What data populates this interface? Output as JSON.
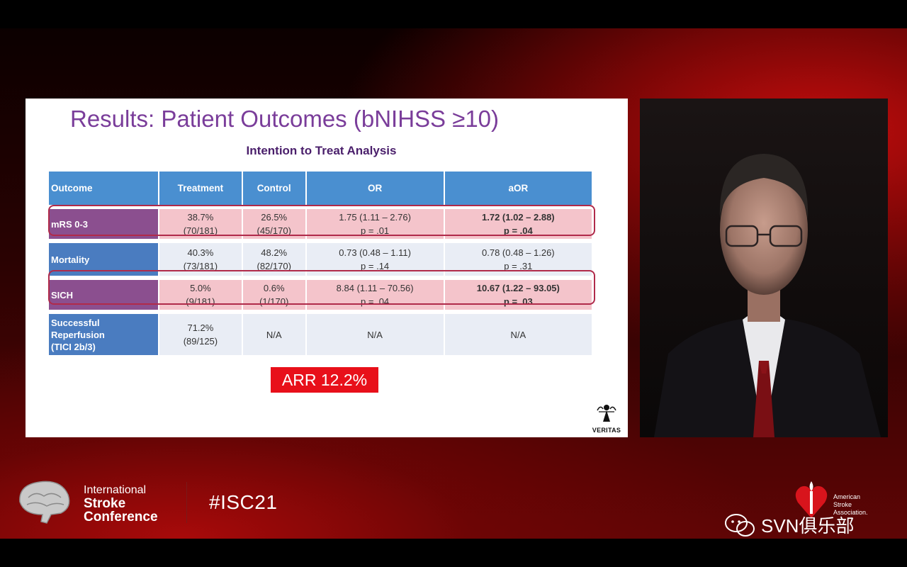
{
  "slide": {
    "title_strong": "Results:",
    "title_rest": "Patient Outcomes (bNIHSS ≥10)",
    "subtitle": "Intention to Treat Analysis",
    "columns": [
      "Outcome",
      "Treatment",
      "Control",
      "OR",
      "aOR"
    ],
    "rows": [
      {
        "outcome": "mRS 0-3",
        "treatment": [
          "38.7%",
          "(70/181)"
        ],
        "control": [
          "26.5%",
          "(45/170)"
        ],
        "or": [
          "1.75 (1.11 – 2.76)",
          "p = .01"
        ],
        "aor": [
          "1.72 (1.02 – 2.88)",
          "p = .04"
        ]
      },
      {
        "outcome": "Mortality",
        "treatment": [
          "40.3%",
          "(73/181)"
        ],
        "control": [
          "48.2%",
          "(82/170)"
        ],
        "or": [
          "0.73 (0.48 – 1.11)",
          "p = .14"
        ],
        "aor": [
          "0.78 (0.48 – 1.26)",
          "p = .31"
        ]
      },
      {
        "outcome": "SICH",
        "treatment": [
          "5.0%",
          "(9/181)"
        ],
        "control": [
          "0.6%",
          "(1/170)"
        ],
        "or": [
          "8.84 (1.11 – 70.56)",
          "p = .04"
        ],
        "aor": [
          "10.67 (1.22 – 93.05)",
          "p = .03"
        ]
      },
      {
        "outcome": [
          "Successful",
          "Reperfusion",
          "(TICI 2b/3)"
        ],
        "treatment": [
          "71.2%",
          "(89/125)"
        ],
        "control": "N/A",
        "or": "N/A",
        "aor": "N/A"
      }
    ],
    "arr": "ARR 12.2%",
    "logo_label": "VERITAS"
  },
  "footer": {
    "conf_line1": "International",
    "conf_line2": "Stroke",
    "conf_line3": "Conference",
    "hashtag": "#ISC21",
    "asa_line1": "American",
    "asa_line2": "Stroke",
    "asa_line3": "Association.",
    "watermark": "SVN俱乐部"
  },
  "colors": {
    "title": "#7a3d9a",
    "header_blue": "#4a8fd0",
    "highlight_pink": "#f4c4cb",
    "arr_red": "#e8101a"
  }
}
